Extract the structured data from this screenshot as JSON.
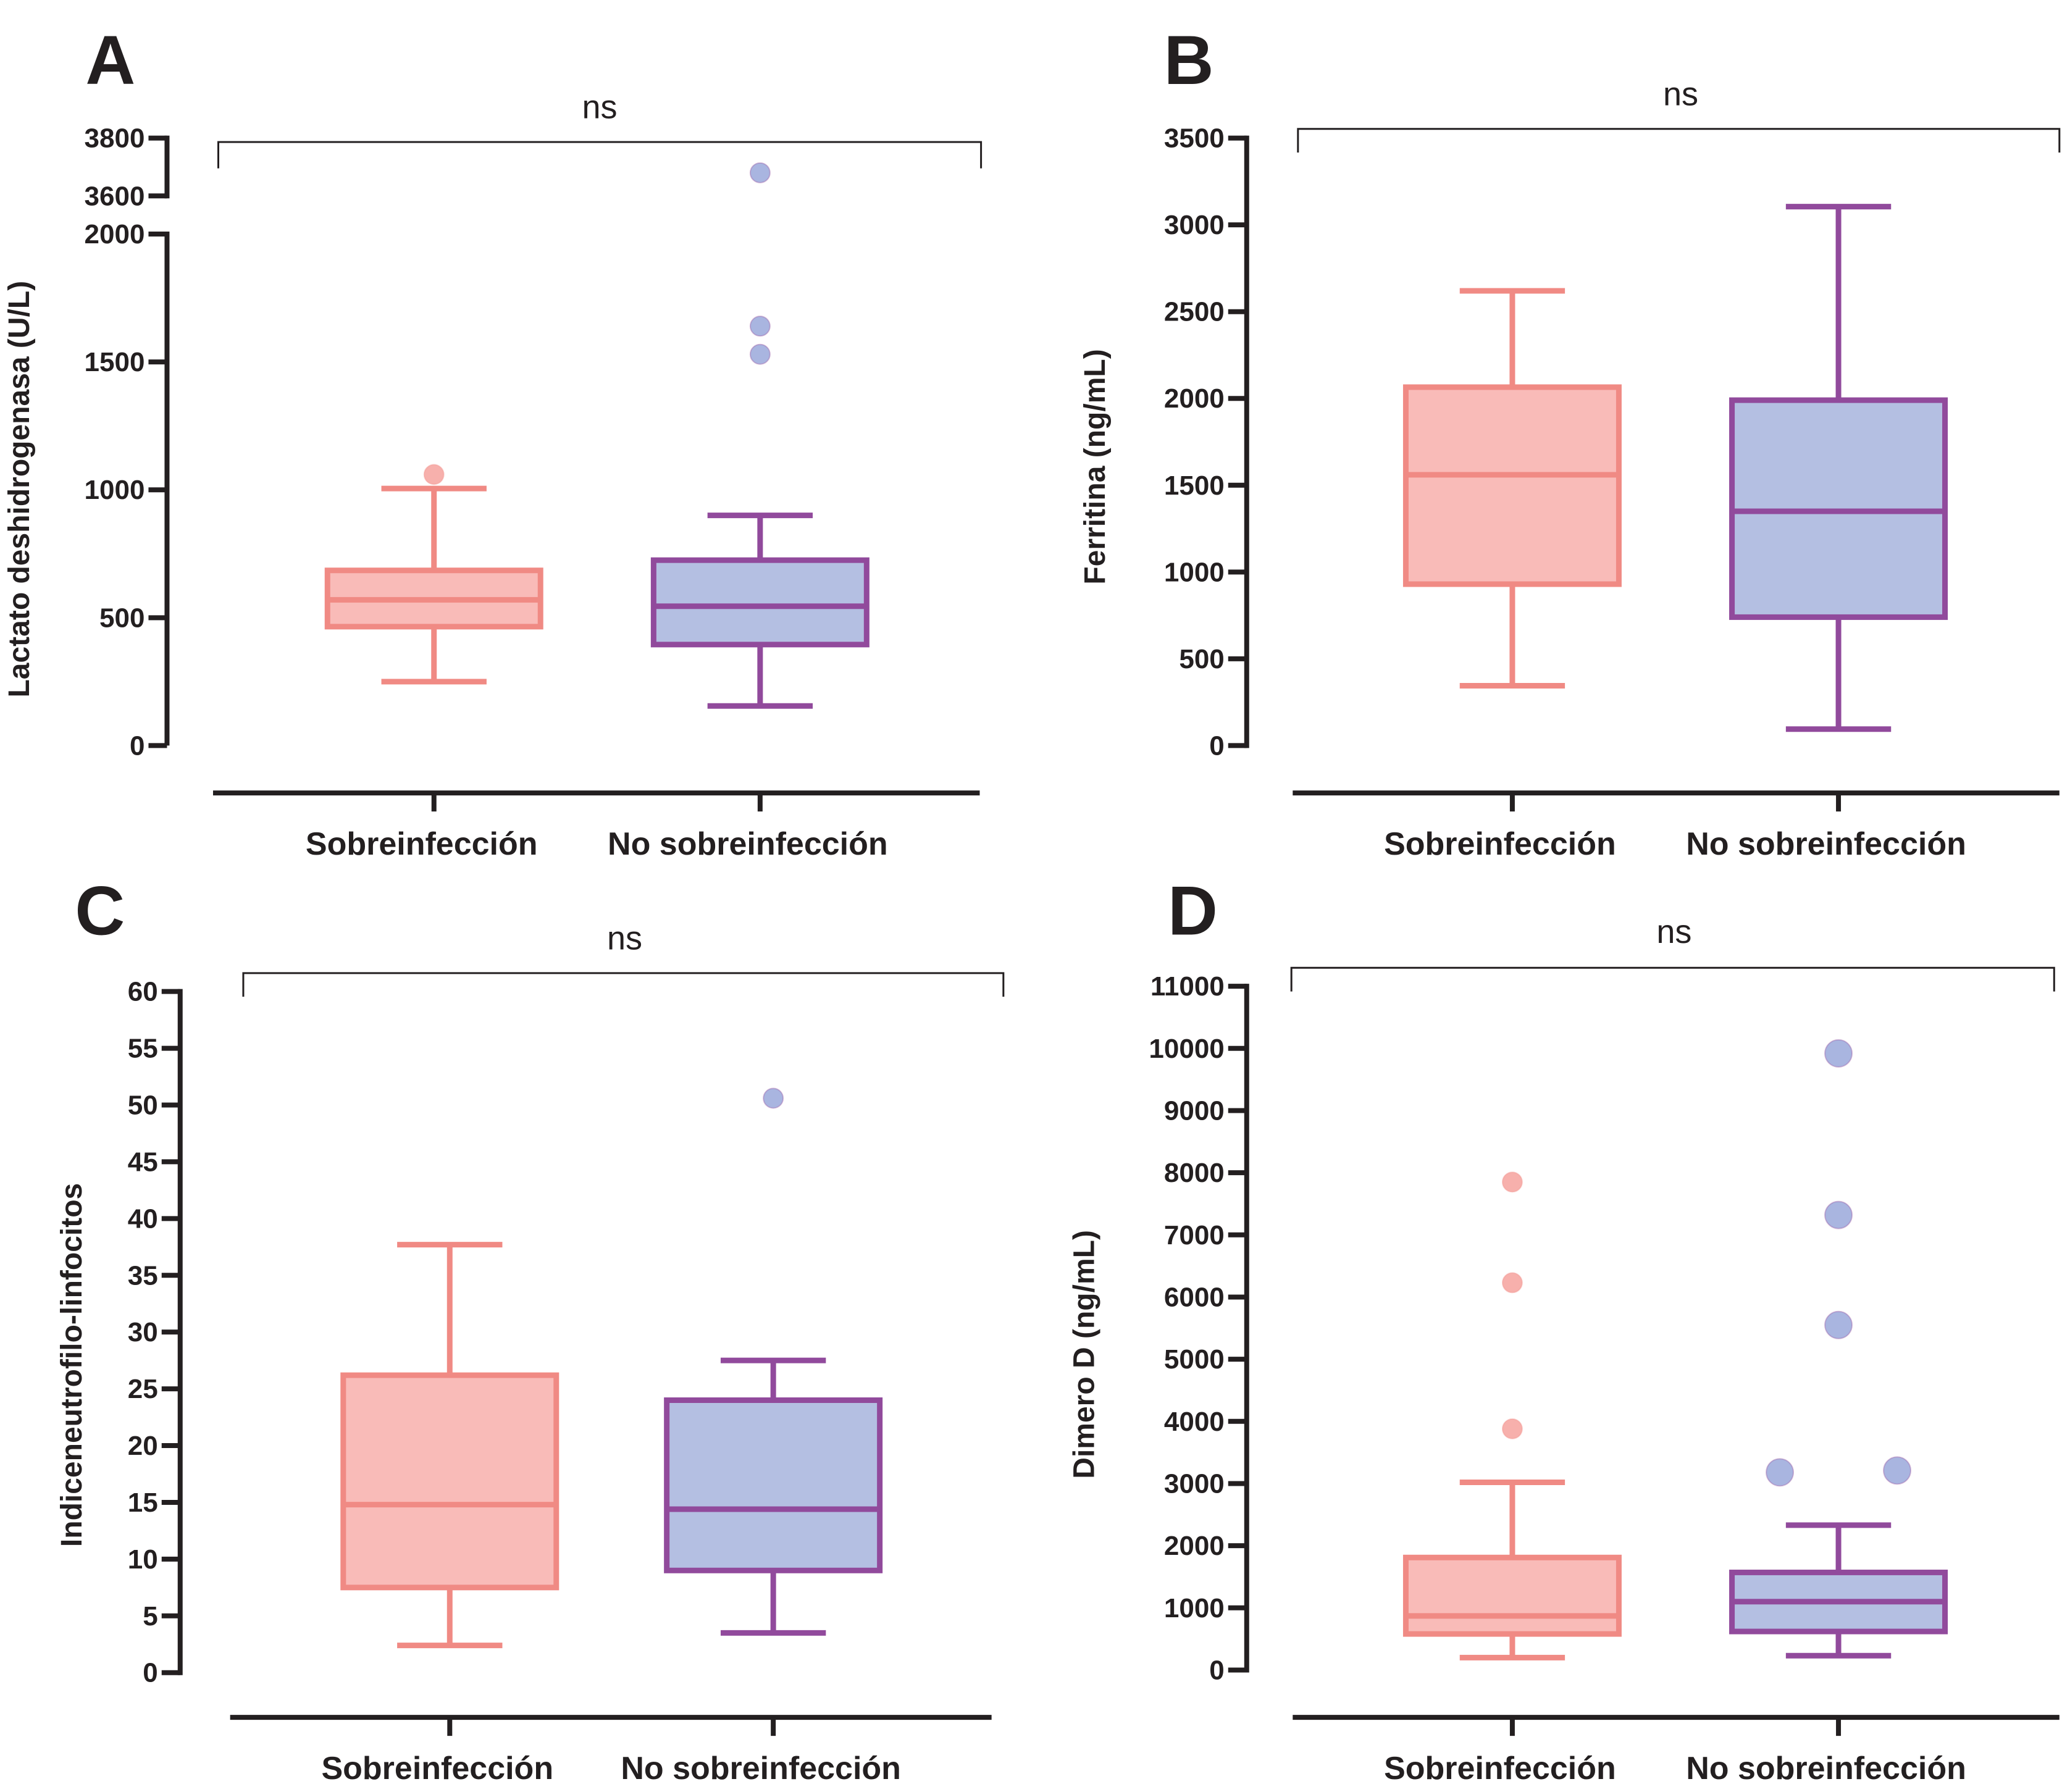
{
  "figure": {
    "significance_label": "ns",
    "colors": {
      "group1_stroke": "#f08a84",
      "group1_fill": "#f9bbb8",
      "group2_stroke": "#914a9c",
      "group2_fill": "#b4bfe2",
      "outlier1_fill": "#f7b0ac",
      "outlier2_fill": "#a9b5e0",
      "axis": "#231f20"
    }
  },
  "chart_data": [
    {
      "panel": "A",
      "type": "box",
      "title": "",
      "ylabel": "Lactato deshidrogenasa (U/L)",
      "xlabel": "",
      "categories": [
        "Sobreinfección",
        "No sobreinfección"
      ],
      "ylim": [
        0,
        3800
      ],
      "y_break": {
        "lower": [
          0,
          2000
        ],
        "upper": [
          3600,
          3800
        ]
      },
      "yticks": [
        0,
        500,
        1000,
        1500,
        2000,
        3600,
        3800
      ],
      "significance": "ns",
      "series": [
        {
          "name": "Sobreinfección",
          "min": 250,
          "q1": 465,
          "median": 570,
          "q3": 685,
          "max": 1005,
          "outliers": [
            1060
          ]
        },
        {
          "name": "No sobreinfección",
          "min": 155,
          "q1": 395,
          "median": 545,
          "q3": 725,
          "max": 900,
          "outliers": [
            1530,
            1640,
            3680
          ]
        }
      ]
    },
    {
      "panel": "B",
      "type": "box",
      "title": "",
      "ylabel": "Ferritina (ng/mL)",
      "xlabel": "",
      "categories": [
        "Sobreinfección",
        "No sobreinfección"
      ],
      "ylim": [
        0,
        3500
      ],
      "yticks": [
        0,
        500,
        1000,
        1500,
        2000,
        2500,
        3000,
        3500
      ],
      "significance": "ns",
      "series": [
        {
          "name": "Sobreinfección",
          "min": 345,
          "q1": 930,
          "median": 1560,
          "q3": 2065,
          "max": 2620,
          "outliers": []
        },
        {
          "name": "No sobreinfección",
          "min": 95,
          "q1": 740,
          "median": 1350,
          "q3": 1990,
          "max": 3105,
          "outliers": []
        }
      ]
    },
    {
      "panel": "C",
      "type": "box",
      "title": "",
      "ylabel": "Indiceneutrofilo-linfocitos",
      "xlabel": "",
      "categories": [
        "Sobreinfección",
        "No sobreinfección"
      ],
      "ylim": [
        0,
        60
      ],
      "yticks": [
        0,
        5,
        10,
        15,
        20,
        25,
        30,
        35,
        40,
        45,
        50,
        55,
        60
      ],
      "significance": "ns",
      "series": [
        {
          "name": "Sobreinfección",
          "min": 2.4,
          "q1": 7.5,
          "median": 14.8,
          "q3": 26.2,
          "max": 37.7,
          "outliers": []
        },
        {
          "name": "No sobreinfección",
          "min": 3.5,
          "q1": 9.0,
          "median": 14.4,
          "q3": 24.0,
          "max": 27.5,
          "outliers": [
            50.6
          ]
        }
      ]
    },
    {
      "panel": "D",
      "type": "box",
      "title": "",
      "ylabel": "Dimero D (ng/mL)",
      "xlabel": "",
      "categories": [
        "Sobreinfección",
        "No sobreinfección"
      ],
      "ylim": [
        0,
        11000
      ],
      "yticks": [
        0,
        1000,
        2000,
        3000,
        4000,
        5000,
        6000,
        7000,
        8000,
        9000,
        10000,
        11000
      ],
      "significance": "ns",
      "series": [
        {
          "name": "Sobreinfección",
          "min": 200,
          "q1": 580,
          "median": 870,
          "q3": 1810,
          "max": 3020,
          "outliers": [
            3880,
            6230,
            7850
          ]
        },
        {
          "name": "No sobreinfección",
          "min": 230,
          "q1": 620,
          "median": 1100,
          "q3": 1570,
          "max": 2330,
          "outliers": [
            3180,
            3210,
            5550,
            7320,
            9920
          ]
        }
      ]
    }
  ]
}
